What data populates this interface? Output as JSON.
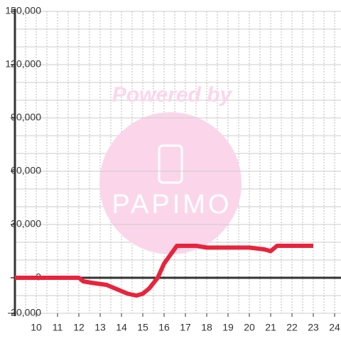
{
  "chart_data": {
    "type": "line",
    "watermark": {
      "top": "Powered by",
      "brand": "PAPIMO"
    },
    "x": [
      9,
      10,
      11,
      12,
      12.2,
      12.7,
      13.3,
      13.7,
      14.3,
      14.7,
      15,
      15.3,
      15.7,
      16,
      16.3,
      16.6,
      17,
      17.5,
      18,
      19,
      20,
      20.7,
      21,
      21.3,
      22,
      23
    ],
    "series": [
      {
        "color": "#e8243c",
        "values": [
          0,
          0,
          0,
          0,
          -2000,
          -3000,
          -4000,
          -6000,
          -9000,
          -10000,
          -9000,
          -6000,
          0,
          8000,
          13000,
          18000,
          18000,
          18000,
          17000,
          17000,
          17000,
          16000,
          15000,
          18000,
          18000,
          18000
        ]
      }
    ],
    "xlim": [
      9,
      24.3
    ],
    "xticks": [
      10,
      11,
      12,
      13,
      14,
      15,
      16,
      17,
      18,
      19,
      20,
      21,
      22,
      23,
      24
    ],
    "ylim": [
      -20000,
      150000
    ],
    "yticks": [
      {
        "value": -20000,
        "label": "-20,000"
      },
      0,
      {
        "value": 30000,
        "label": "30,000"
      },
      {
        "value": 60000,
        "label": "60,000"
      },
      {
        "value": 90000,
        "label": "90,000"
      },
      {
        "value": 120000,
        "label": "120,000"
      },
      {
        "value": 150000,
        "label": "150,000"
      }
    ],
    "grid": true
  }
}
